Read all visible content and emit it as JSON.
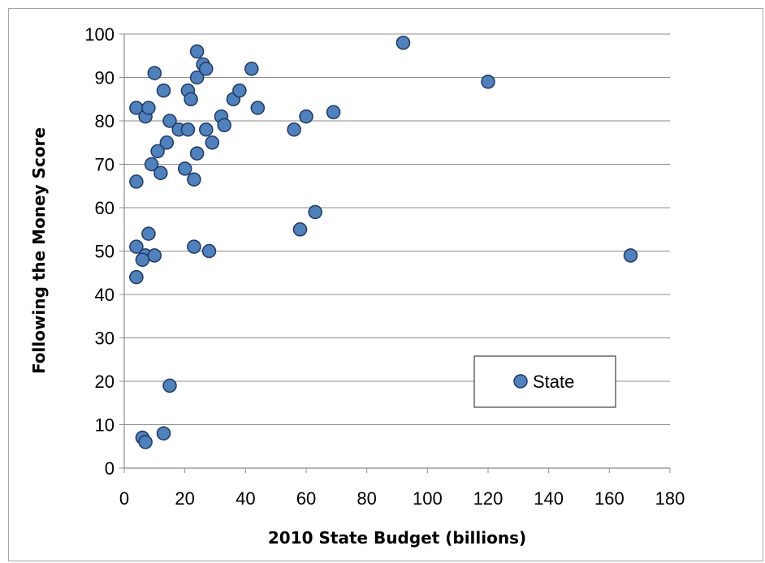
{
  "chart_data": {
    "type": "scatter",
    "title": "",
    "xlabel": "2010 State Budget (billions)",
    "ylabel": "Following the Money Score",
    "xlim": [
      0,
      180
    ],
    "ylim": [
      0,
      100
    ],
    "xticks": [
      0,
      20,
      40,
      60,
      80,
      100,
      120,
      140,
      160,
      180
    ],
    "yticks": [
      0,
      10,
      20,
      30,
      40,
      50,
      60,
      70,
      80,
      90,
      100
    ],
    "grid": "horizontal",
    "legend_position": "lower-right",
    "series": [
      {
        "name": "State",
        "color": "#4f81bd",
        "points": [
          [
            4,
            83
          ],
          [
            7,
            81
          ],
          [
            8,
            83
          ],
          [
            4,
            66
          ],
          [
            10,
            91
          ],
          [
            13,
            87
          ],
          [
            15,
            80
          ],
          [
            14,
            75
          ],
          [
            11,
            73
          ],
          [
            9,
            70
          ],
          [
            12,
            68
          ],
          [
            18,
            78
          ],
          [
            21,
            78
          ],
          [
            21,
            87
          ],
          [
            22,
            85
          ],
          [
            24,
            90
          ],
          [
            24,
            96
          ],
          [
            26,
            93
          ],
          [
            27,
            92
          ],
          [
            24,
            72.5
          ],
          [
            20,
            69
          ],
          [
            23,
            66.5
          ],
          [
            27,
            78
          ],
          [
            29,
            75
          ],
          [
            32,
            81
          ],
          [
            33,
            79
          ],
          [
            36,
            85
          ],
          [
            38,
            87
          ],
          [
            42,
            92
          ],
          [
            44,
            83
          ],
          [
            56,
            78
          ],
          [
            60,
            81
          ],
          [
            69,
            82
          ],
          [
            58,
            55
          ],
          [
            63,
            59
          ],
          [
            92,
            98
          ],
          [
            120,
            89
          ],
          [
            167,
            49
          ],
          [
            4,
            51
          ],
          [
            8,
            54
          ],
          [
            7,
            49
          ],
          [
            6,
            48
          ],
          [
            10,
            49
          ],
          [
            4,
            44
          ],
          [
            23,
            51
          ],
          [
            28,
            50
          ],
          [
            15,
            19
          ],
          [
            6,
            7
          ],
          [
            7,
            6
          ],
          [
            13,
            8
          ]
        ]
      }
    ]
  }
}
